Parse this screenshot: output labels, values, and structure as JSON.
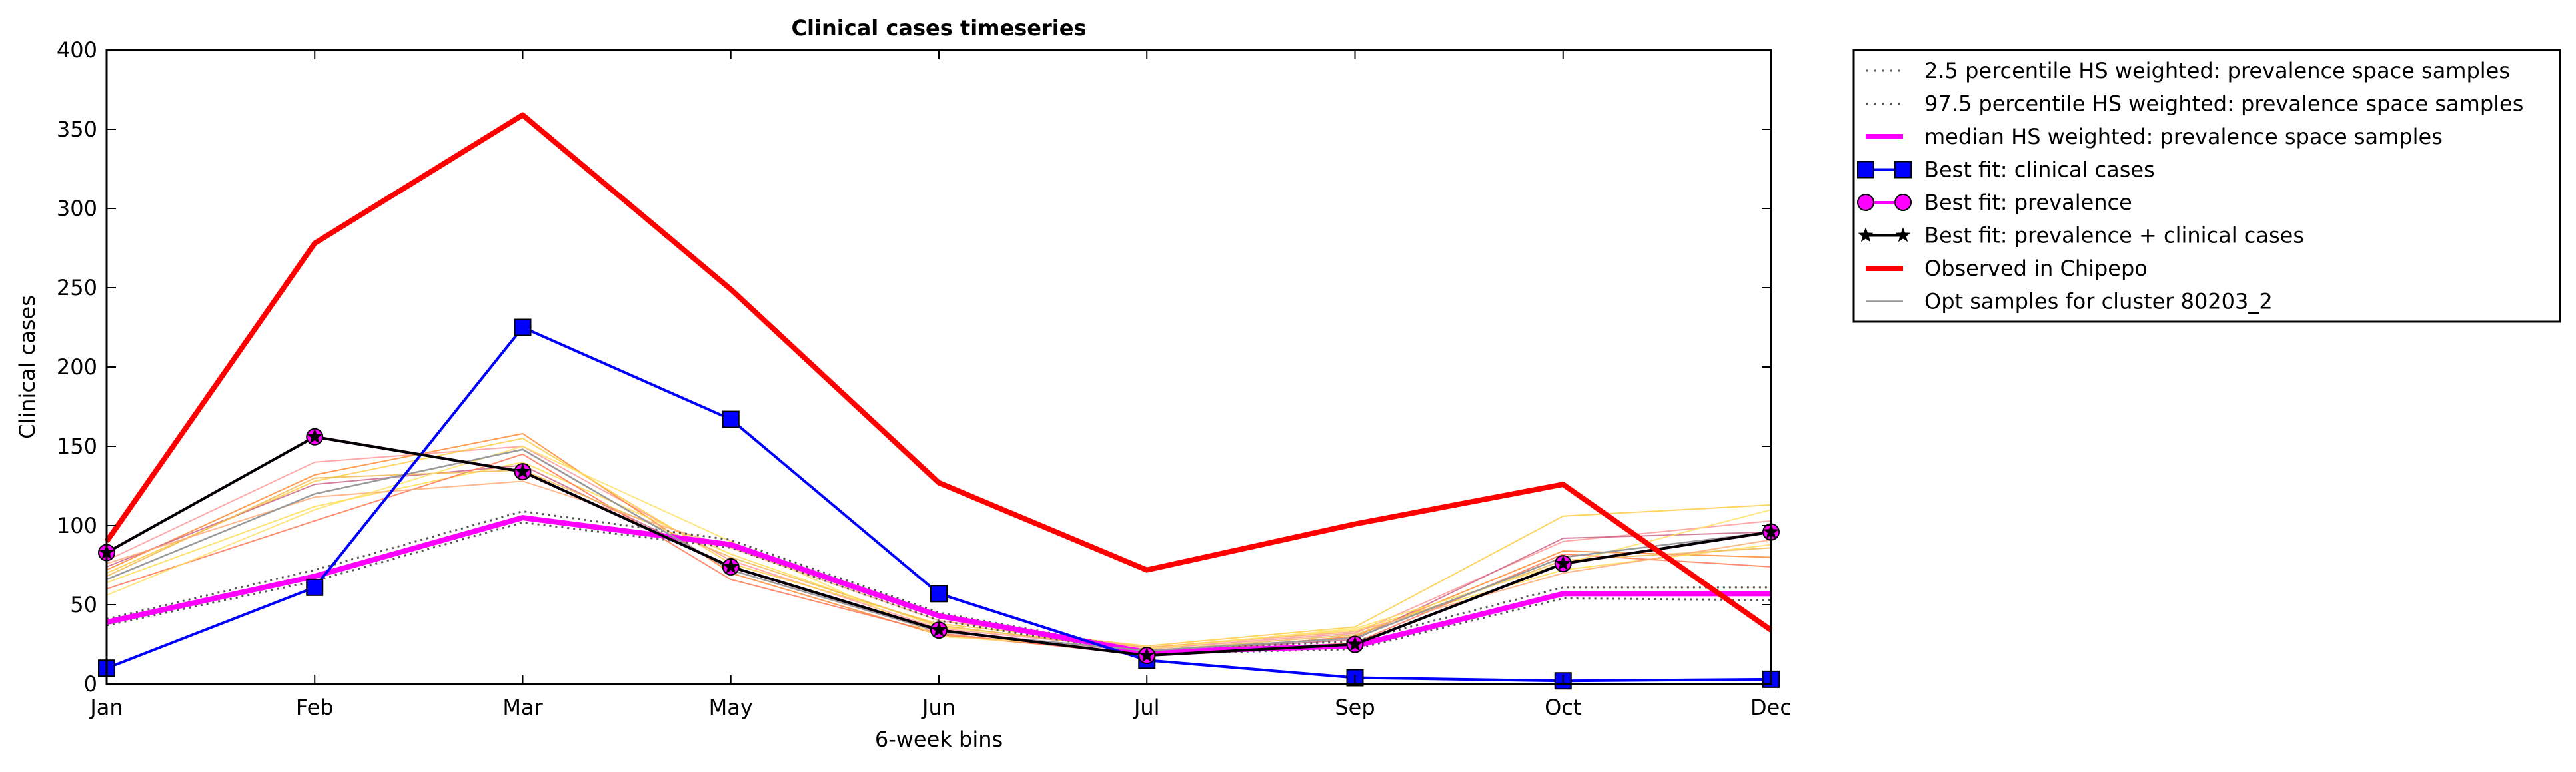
{
  "chart_data": {
    "type": "line",
    "title": "Clinical cases timeseries",
    "xlabel": "6-week bins",
    "ylabel": "Clinical cases",
    "ylim": [
      0,
      400
    ],
    "yticks": [
      0,
      50,
      100,
      150,
      200,
      250,
      300,
      350,
      400
    ],
    "categories": [
      "Jan",
      "Feb",
      "Mar",
      "May",
      "Jun",
      "Jul",
      "Sep",
      "Oct",
      "Dec"
    ],
    "grid": false,
    "legend_position": "outside-right-top",
    "series": [
      {
        "name": "2.5 percentile HS weighted: prevalence space samples",
        "style": "dotted",
        "color": "#555555",
        "values": [
          37,
          65,
          102,
          86,
          40,
          19,
          22,
          54,
          53
        ]
      },
      {
        "name": "97.5 percentile HS weighted: prevalence space samples",
        "style": "dotted",
        "color": "#555555",
        "values": [
          41,
          72,
          109,
          91,
          45,
          21,
          27,
          61,
          61
        ]
      },
      {
        "name": "median HS weighted: prevalence space samples",
        "style": "solid-thick",
        "color": "#ff00ff",
        "values": [
          39,
          68,
          105,
          88,
          43,
          20,
          24,
          57,
          57
        ]
      },
      {
        "name": "Best fit: clinical cases",
        "style": "solid-square",
        "color": "#0000ff",
        "values": [
          10,
          61,
          225,
          167,
          57,
          15,
          4,
          2,
          3
        ]
      },
      {
        "name": "Best fit: prevalence",
        "style": "solid-circle",
        "color": "#ff00ff",
        "values": [
          83,
          156,
          134,
          74,
          34,
          18,
          25,
          76,
          96
        ]
      },
      {
        "name": "Best fit: prevalence + clinical cases",
        "style": "solid-star",
        "color": "#000000",
        "values": [
          83,
          156,
          134,
          74,
          34,
          18,
          25,
          76,
          96
        ]
      },
      {
        "name": "Observed in Chipepo",
        "style": "solid-thick",
        "color": "#ff0000",
        "values": [
          90,
          278,
          359,
          249,
          127,
          72,
          101,
          126,
          34
        ]
      },
      {
        "name": "Opt samples for cluster 80203_2",
        "style": "thin",
        "color": "#999999",
        "values": [
          66,
          120,
          148,
          72,
          33,
          21,
          29,
          80,
          96
        ]
      }
    ],
    "sample_series": [
      {
        "color": "#ff9999",
        "values": [
          78,
          140,
          150,
          78,
          35,
          22,
          32,
          90,
          103
        ]
      },
      {
        "color": "#ff8833",
        "values": [
          72,
          132,
          158,
          70,
          31,
          19,
          30,
          84,
          80
        ]
      },
      {
        "color": "#ffcc44",
        "values": [
          70,
          128,
          155,
          76,
          38,
          24,
          36,
          106,
          113
        ]
      },
      {
        "color": "#ffdd55",
        "values": [
          64,
          112,
          140,
          82,
          36,
          23,
          34,
          72,
          88
        ]
      },
      {
        "color": "#cc6688",
        "values": [
          74,
          126,
          138,
          74,
          34,
          20,
          28,
          92,
          96
        ]
      },
      {
        "color": "#ff7755",
        "values": [
          60,
          103,
          145,
          66,
          32,
          18,
          26,
          82,
          74
        ]
      },
      {
        "color": "#eebb55",
        "values": [
          68,
          130,
          135,
          80,
          37,
          21,
          31,
          78,
          86
        ]
      },
      {
        "color": "#ffaa77",
        "values": [
          76,
          118,
          128,
          86,
          40,
          23,
          33,
          70,
          91
        ]
      },
      {
        "color": "#ffe066",
        "values": [
          56,
          110,
          150,
          90,
          30,
          22,
          35,
          76,
          110
        ]
      }
    ]
  }
}
